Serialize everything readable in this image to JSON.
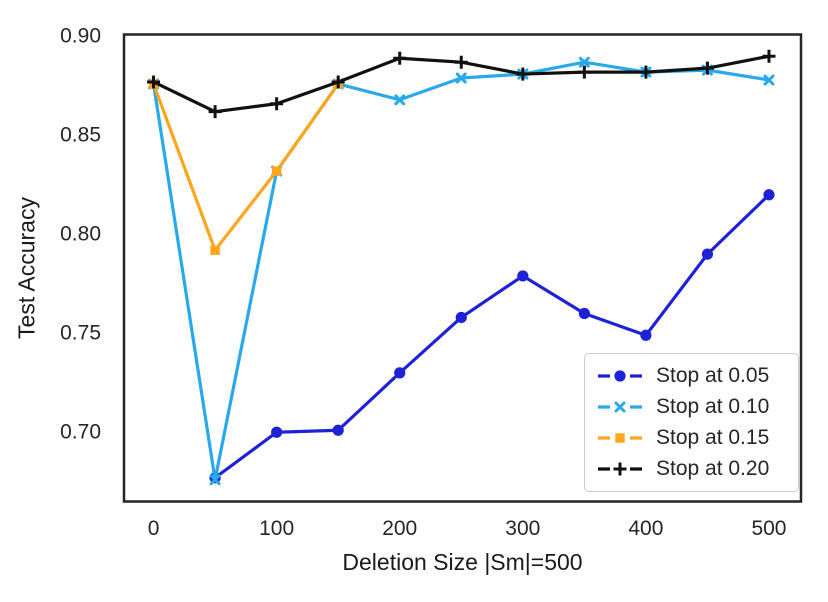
{
  "chart_data": {
    "type": "line",
    "title": "",
    "xlabel": "Deletion Size |Sm|=500",
    "ylabel": "Test Accuracy",
    "grid": false,
    "legend_position": "lower right",
    "axes_color": "#262626",
    "xlim": [
      -24,
      526
    ],
    "ylim": [
      0.665,
      0.901
    ],
    "xticks": [
      0,
      100,
      200,
      300,
      400,
      500
    ],
    "yticks": [
      0.7,
      0.75,
      0.8,
      0.85,
      0.9
    ],
    "series": [
      {
        "name": "Stop at 0.05",
        "color": "#1E22D6",
        "marker": "circle",
        "x": [
          50,
          100,
          150,
          200,
          250,
          300,
          350,
          400,
          450,
          500
        ],
        "values": [
          0.677,
          0.7,
          0.701,
          0.73,
          0.758,
          0.779,
          0.76,
          0.749,
          0.79,
          0.82
        ]
      },
      {
        "name": "Stop at 0.10",
        "color": "#29A8EA",
        "marker": "x",
        "x": [
          0,
          50,
          100,
          150,
          200,
          250,
          300,
          350,
          400,
          450,
          500
        ],
        "values": [
          0.876,
          0.676,
          0.832,
          0.876,
          0.868,
          0.879,
          0.881,
          0.887,
          0.882,
          0.883,
          0.878
        ]
      },
      {
        "name": "Stop at 0.15",
        "color": "#FFA51E",
        "marker": "square",
        "x": [
          0,
          50,
          100,
          150
        ],
        "values": [
          0.876,
          0.792,
          0.832,
          0.876
        ]
      },
      {
        "name": "Stop at 0.20",
        "color": "#111111",
        "marker": "plus",
        "x": [
          0,
          50,
          100,
          150,
          200,
          250,
          300,
          350,
          400,
          450,
          500
        ],
        "values": [
          0.877,
          0.862,
          0.866,
          0.877,
          0.889,
          0.887,
          0.881,
          0.882,
          0.882,
          0.884,
          0.89
        ]
      }
    ]
  },
  "legend": {
    "items": [
      "Stop at 0.05",
      "Stop at 0.10",
      "Stop at 0.15",
      "Stop at 0.20"
    ]
  }
}
